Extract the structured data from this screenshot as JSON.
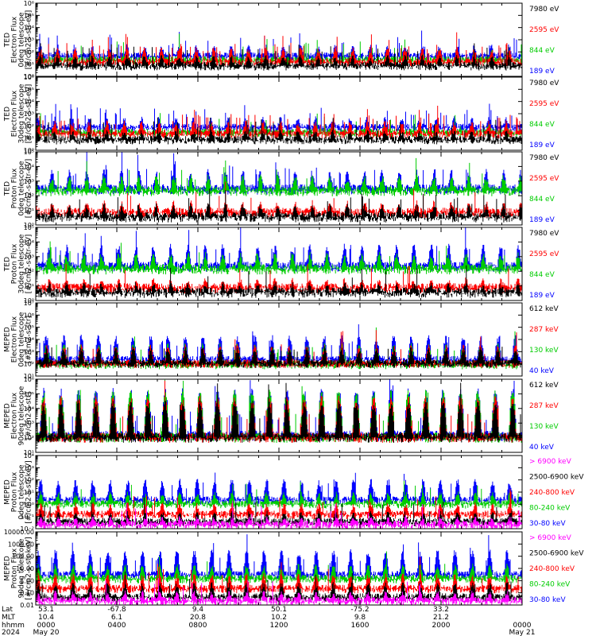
{
  "chart_data": [
    {
      "type": "line",
      "ylabel": [
        "TED",
        "Electron Flux",
        "0deg telescope",
        "[#/cm2-s-str-eV]"
      ],
      "yscale": "log",
      "ylim": [
        1,
        1000000
      ],
      "yticks": [
        "10⁰",
        "10¹",
        "10²",
        "10³",
        "10⁴",
        "10⁵",
        "10⁶"
      ],
      "series": [
        {
          "name": "7980 eV",
          "color": "#000000",
          "base": 10,
          "amp": 40,
          "spikes": 0.07
        },
        {
          "name": "2595 eV",
          "color": "#ff0000",
          "base": 20,
          "amp": 200,
          "spikes": 0.08
        },
        {
          "name": "844 eV",
          "color": "#00cc00",
          "base": 30,
          "amp": 100,
          "spikes": 0.03
        },
        {
          "name": "189 eV",
          "color": "#0000ff",
          "base": 60,
          "amp": 300,
          "spikes": 0.04
        }
      ]
    },
    {
      "type": "line",
      "ylabel": [
        "TED",
        "Electron Flux",
        "30deg telescope",
        "[#/cm2-s-str-eV]"
      ],
      "yscale": "log",
      "ylim": [
        1,
        1000000
      ],
      "yticks": [
        "10⁰",
        "10¹",
        "10²",
        "10³",
        "10⁴",
        "10⁵",
        "10⁶"
      ],
      "series": [
        {
          "name": "7980 eV",
          "color": "#000000",
          "base": 10,
          "amp": 30,
          "spikes": 0.07
        },
        {
          "name": "2595 eV",
          "color": "#ff0000",
          "base": 30,
          "amp": 200,
          "spikes": 0.08
        },
        {
          "name": "844 eV",
          "color": "#00cc00",
          "base": 40,
          "amp": 80,
          "spikes": 0.03
        },
        {
          "name": "189 eV",
          "color": "#0000ff",
          "base": 100,
          "amp": 400,
          "spikes": 0.05
        }
      ]
    },
    {
      "type": "line",
      "ylabel": [
        "TED",
        "Proton Flux",
        "0deg telescope",
        "[#/cm2-s-str-eV]"
      ],
      "yscale": "log",
      "ylim": [
        1,
        100000
      ],
      "yticks": [
        "10⁰",
        "10¹",
        "10²",
        "10³",
        "10⁴",
        "10⁵"
      ],
      "series": [
        {
          "name": "7980 eV",
          "color": "#000000",
          "base": 5,
          "amp": 20,
          "spikes": 0.03
        },
        {
          "name": "2595 eV",
          "color": "#ff0000",
          "base": 10,
          "amp": 30,
          "spikes": 0.02
        },
        {
          "name": "844 eV",
          "color": "#00cc00",
          "base": 300,
          "amp": 2000,
          "spikes": 0.02
        },
        {
          "name": "189 eV",
          "color": "#0000ff",
          "base": 400,
          "amp": 5000,
          "spikes": 0.04
        }
      ]
    },
    {
      "type": "line",
      "ylabel": [
        "TED",
        "Proton Flux",
        "30deg telescope",
        "[#/cm2-s-str-eV]"
      ],
      "yscale": "log",
      "ylim": [
        1,
        100000
      ],
      "yticks": [
        "10⁰",
        "10¹",
        "10²",
        "10³",
        "10⁴",
        "10⁵"
      ],
      "series": [
        {
          "name": "7980 eV",
          "color": "#000000",
          "base": 5,
          "amp": 10,
          "spikes": 0.02
        },
        {
          "name": "2595 eV",
          "color": "#ff0000",
          "base": 10,
          "amp": 20,
          "spikes": 0.02
        },
        {
          "name": "844 eV",
          "color": "#00cc00",
          "base": 200,
          "amp": 1500,
          "spikes": 0.02
        },
        {
          "name": "189 eV",
          "color": "#0000ff",
          "base": 300,
          "amp": 6000,
          "spikes": 0.04
        }
      ]
    },
    {
      "type": "line",
      "ylabel": [
        "MEPED",
        "Electron Flux",
        "0deg telescope",
        "[#/cm2-s-str]"
      ],
      "yscale": "log",
      "ylim": [
        10,
        10000000
      ],
      "yticks": [
        "10¹",
        "10²",
        "10³",
        "10⁴",
        "10⁵",
        "10⁶",
        "10⁷"
      ],
      "series": [
        {
          "name": "612 keV",
          "color": "#000000",
          "base": 150,
          "amp": 2000,
          "spikes": 0.02
        },
        {
          "name": "287 keV",
          "color": "#ff0000",
          "base": 150,
          "amp": 3000,
          "spikes": 0.02
        },
        {
          "name": "130 keV",
          "color": "#00cc00",
          "base": 120,
          "amp": 4000,
          "spikes": 0.02
        },
        {
          "name": "40 keV",
          "color": "#0000ff",
          "base": 300,
          "amp": 20000,
          "spikes": 0.04
        }
      ]
    },
    {
      "type": "line",
      "ylabel": [
        "MEPED",
        "Electron Flux",
        "90deg telescope",
        "[#/cm2-s-str]"
      ],
      "yscale": "log",
      "ylim": [
        10,
        1000000
      ],
      "yticks": [
        "10¹",
        "10²",
        "10³",
        "10⁴",
        "10⁵",
        "10⁶"
      ],
      "series": [
        {
          "name": "612 keV",
          "color": "#000000",
          "base": 150,
          "amp": 30000,
          "spikes": 0.03
        },
        {
          "name": "287 keV",
          "color": "#ff0000",
          "base": 150,
          "amp": 60000,
          "spikes": 0.03
        },
        {
          "name": "130 keV",
          "color": "#00cc00",
          "base": 150,
          "amp": 150000,
          "spikes": 0.03
        },
        {
          "name": "40 keV",
          "color": "#0000ff",
          "base": 200,
          "amp": 200000,
          "spikes": 0.04
        }
      ]
    },
    {
      "type": "line",
      "ylabel": [
        "MEPED",
        "Proton Flux",
        "0deg telescope",
        "[#/cm2-s-str-keV]"
      ],
      "yscale": "log",
      "ylim": [
        0.01,
        10000
      ],
      "yticks": [
        "10⁻²",
        "10⁻¹",
        "10⁰",
        "10¹",
        "10²",
        "10³",
        "10⁴"
      ],
      "series": [
        {
          "name": "> 6900 keV",
          "color": "#ff00ff",
          "base": 0.03,
          "amp": 0.06,
          "spikes": 0.02
        },
        {
          "name": "2500-6900 keV",
          "color": "#000000",
          "base": 0.05,
          "amp": 0.2,
          "spikes": 0.02
        },
        {
          "name": "240-800 keV",
          "color": "#ff0000",
          "base": 0.2,
          "amp": 1,
          "spikes": 0.02
        },
        {
          "name": "80-240 keV",
          "color": "#00cc00",
          "base": 1.5,
          "amp": 8,
          "spikes": 0.02
        },
        {
          "name": "30-80 keV",
          "color": "#0000ff",
          "base": 3,
          "amp": 100,
          "spikes": 0.04
        }
      ]
    },
    {
      "type": "line",
      "ylabel": [
        "MEPED",
        "Proton Flux",
        "90deg telescope",
        "[#/cm2-s-str-keV]"
      ],
      "yscale": "log",
      "ylim": [
        0.01,
        10000
      ],
      "yticks": [
        "0.01",
        "0.10",
        "1.00",
        "10.00",
        "100.00",
        "1000.00",
        "10000.00"
      ],
      "series": [
        {
          "name": "> 6900 keV",
          "color": "#ff00ff",
          "base": 0.03,
          "amp": 0.1,
          "spikes": 0.02
        },
        {
          "name": "2500-6900 keV",
          "color": "#000000",
          "base": 0.06,
          "amp": 0.6,
          "spikes": 0.02
        },
        {
          "name": "240-800 keV",
          "color": "#ff0000",
          "base": 0.3,
          "amp": 3,
          "spikes": 0.02
        },
        {
          "name": "80-240 keV",
          "color": "#00cc00",
          "base": 2,
          "amp": 20,
          "spikes": 0.02
        },
        {
          "name": "30-80 keV",
          "color": "#0000ff",
          "base": 4,
          "amp": 300,
          "spikes": 0.04
        }
      ]
    }
  ],
  "footer": {
    "row_labels": [
      "Lat",
      "MLT",
      "hhmm",
      "2024"
    ],
    "columns": [
      {
        "lat": "53.1",
        "mlt": "10.4",
        "hhmm": "0000",
        "date": "May 20"
      },
      {
        "lat": "-67.8",
        "mlt": "6.1",
        "hhmm": "0400",
        "date": ""
      },
      {
        "lat": "9.4",
        "mlt": "20.8",
        "hhmm": "0800",
        "date": ""
      },
      {
        "lat": "50.1",
        "mlt": "10.2",
        "hhmm": "1200",
        "date": ""
      },
      {
        "lat": "-75.2",
        "mlt": "9.8",
        "hhmm": "1600",
        "date": ""
      },
      {
        "lat": "33.2",
        "mlt": "21.2",
        "hhmm": "2000",
        "date": ""
      },
      {
        "lat": "",
        "mlt": "",
        "hhmm": "0000",
        "date": "May 21"
      }
    ]
  }
}
